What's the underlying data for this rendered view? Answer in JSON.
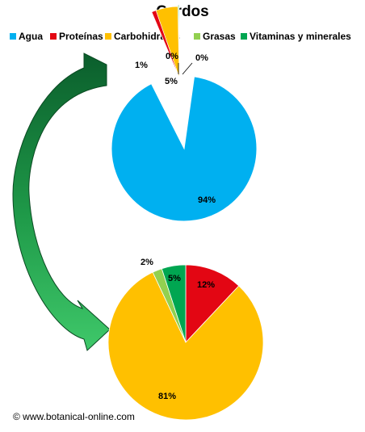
{
  "title": "Cardos",
  "colors": {
    "Agua": "#00b0f0",
    "Proteínas": "#e30613",
    "Carbohidratos": "#ffc000",
    "Grasas": "#92d050",
    "Vitaminas y minerales": "#00a651"
  },
  "chart_data": [
    {
      "type": "pie",
      "title": "Cardos",
      "legend": [
        "Agua",
        "Proteínas",
        "Carbohidratos",
        "Grasas",
        "Vitaminas y minerales"
      ],
      "legend_position": "top",
      "categories": [
        "Agua",
        "Proteínas",
        "Carbohidratos",
        "Grasas",
        "Vitaminas y minerales"
      ],
      "values": [
        94,
        1,
        5,
        0,
        0
      ],
      "labels": [
        "94%",
        "1%",
        "5%",
        "0%",
        "0%"
      ],
      "exploded": [
        "Proteínas",
        "Carbohidratos",
        "Grasas",
        "Vitaminas y minerales"
      ]
    },
    {
      "type": "pie",
      "categories": [
        "Proteínas",
        "Carbohidratos",
        "Grasas",
        "Vitaminas y minerales"
      ],
      "values": [
        12,
        81,
        2,
        5
      ],
      "labels": [
        "12%",
        "81%",
        "2%",
        "5%"
      ]
    }
  ],
  "credit": "© www.botanical-online.com"
}
